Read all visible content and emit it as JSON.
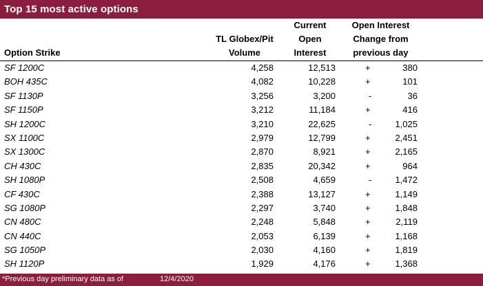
{
  "title": "Top 15 most active options",
  "headers": {
    "strike": "Option Strike",
    "volume_line1": "TL Globex/Pit",
    "volume_line2": "Volume",
    "oi_line1": "Current",
    "oi_line2": "Open",
    "oi_line3": "Interest",
    "chg_line1": "Open Interest",
    "chg_line2": "Change from",
    "chg_line3": "previous day"
  },
  "rows": [
    {
      "strike": "SF 1200C",
      "volume": "4,258",
      "oi": "12,513",
      "sign": "+",
      "change": "380"
    },
    {
      "strike": "BOH 435C",
      "volume": "4,082",
      "oi": "10,228",
      "sign": "+",
      "change": "101"
    },
    {
      "strike": "SF 1130P",
      "volume": "3,256",
      "oi": "3,200",
      "sign": "-",
      "change": "36"
    },
    {
      "strike": "SF 1150P",
      "volume": "3,212",
      "oi": "11,184",
      "sign": "+",
      "change": "416"
    },
    {
      "strike": "SH 1200C",
      "volume": "3,210",
      "oi": "22,625",
      "sign": "-",
      "change": "1,025"
    },
    {
      "strike": "SX 1100C",
      "volume": "2,979",
      "oi": "12,799",
      "sign": "+",
      "change": "2,451"
    },
    {
      "strike": "SX 1300C",
      "volume": "2,870",
      "oi": "8,921",
      "sign": "+",
      "change": "2,165"
    },
    {
      "strike": "CH 430C",
      "volume": "2,835",
      "oi": "20,342",
      "sign": "+",
      "change": "964"
    },
    {
      "strike": "SH 1080P",
      "volume": "2,508",
      "oi": "4,659",
      "sign": "-",
      "change": "1,472"
    },
    {
      "strike": "CF 430C",
      "volume": "2,388",
      "oi": "13,127",
      "sign": "+",
      "change": "1,149"
    },
    {
      "strike": "SG 1080P",
      "volume": "2,297",
      "oi": "3,740",
      "sign": "+",
      "change": "1,848"
    },
    {
      "strike": "CN 480C",
      "volume": "2,248",
      "oi": "5,848",
      "sign": "+",
      "change": "2,119"
    },
    {
      "strike": "CN 440C",
      "volume": "2,053",
      "oi": "6,139",
      "sign": "+",
      "change": "1,168"
    },
    {
      "strike": "SG 1050P",
      "volume": "2,030",
      "oi": "4,160",
      "sign": "+",
      "change": "1,819"
    },
    {
      "strike": "SH 1120P",
      "volume": "1,929",
      "oi": "4,176",
      "sign": "+",
      "change": "1,368"
    }
  ],
  "footer": {
    "note": "*Previous day preliminary data as of",
    "date": "12/4/2020"
  },
  "colors": {
    "bar": "#8b1e3f"
  }
}
